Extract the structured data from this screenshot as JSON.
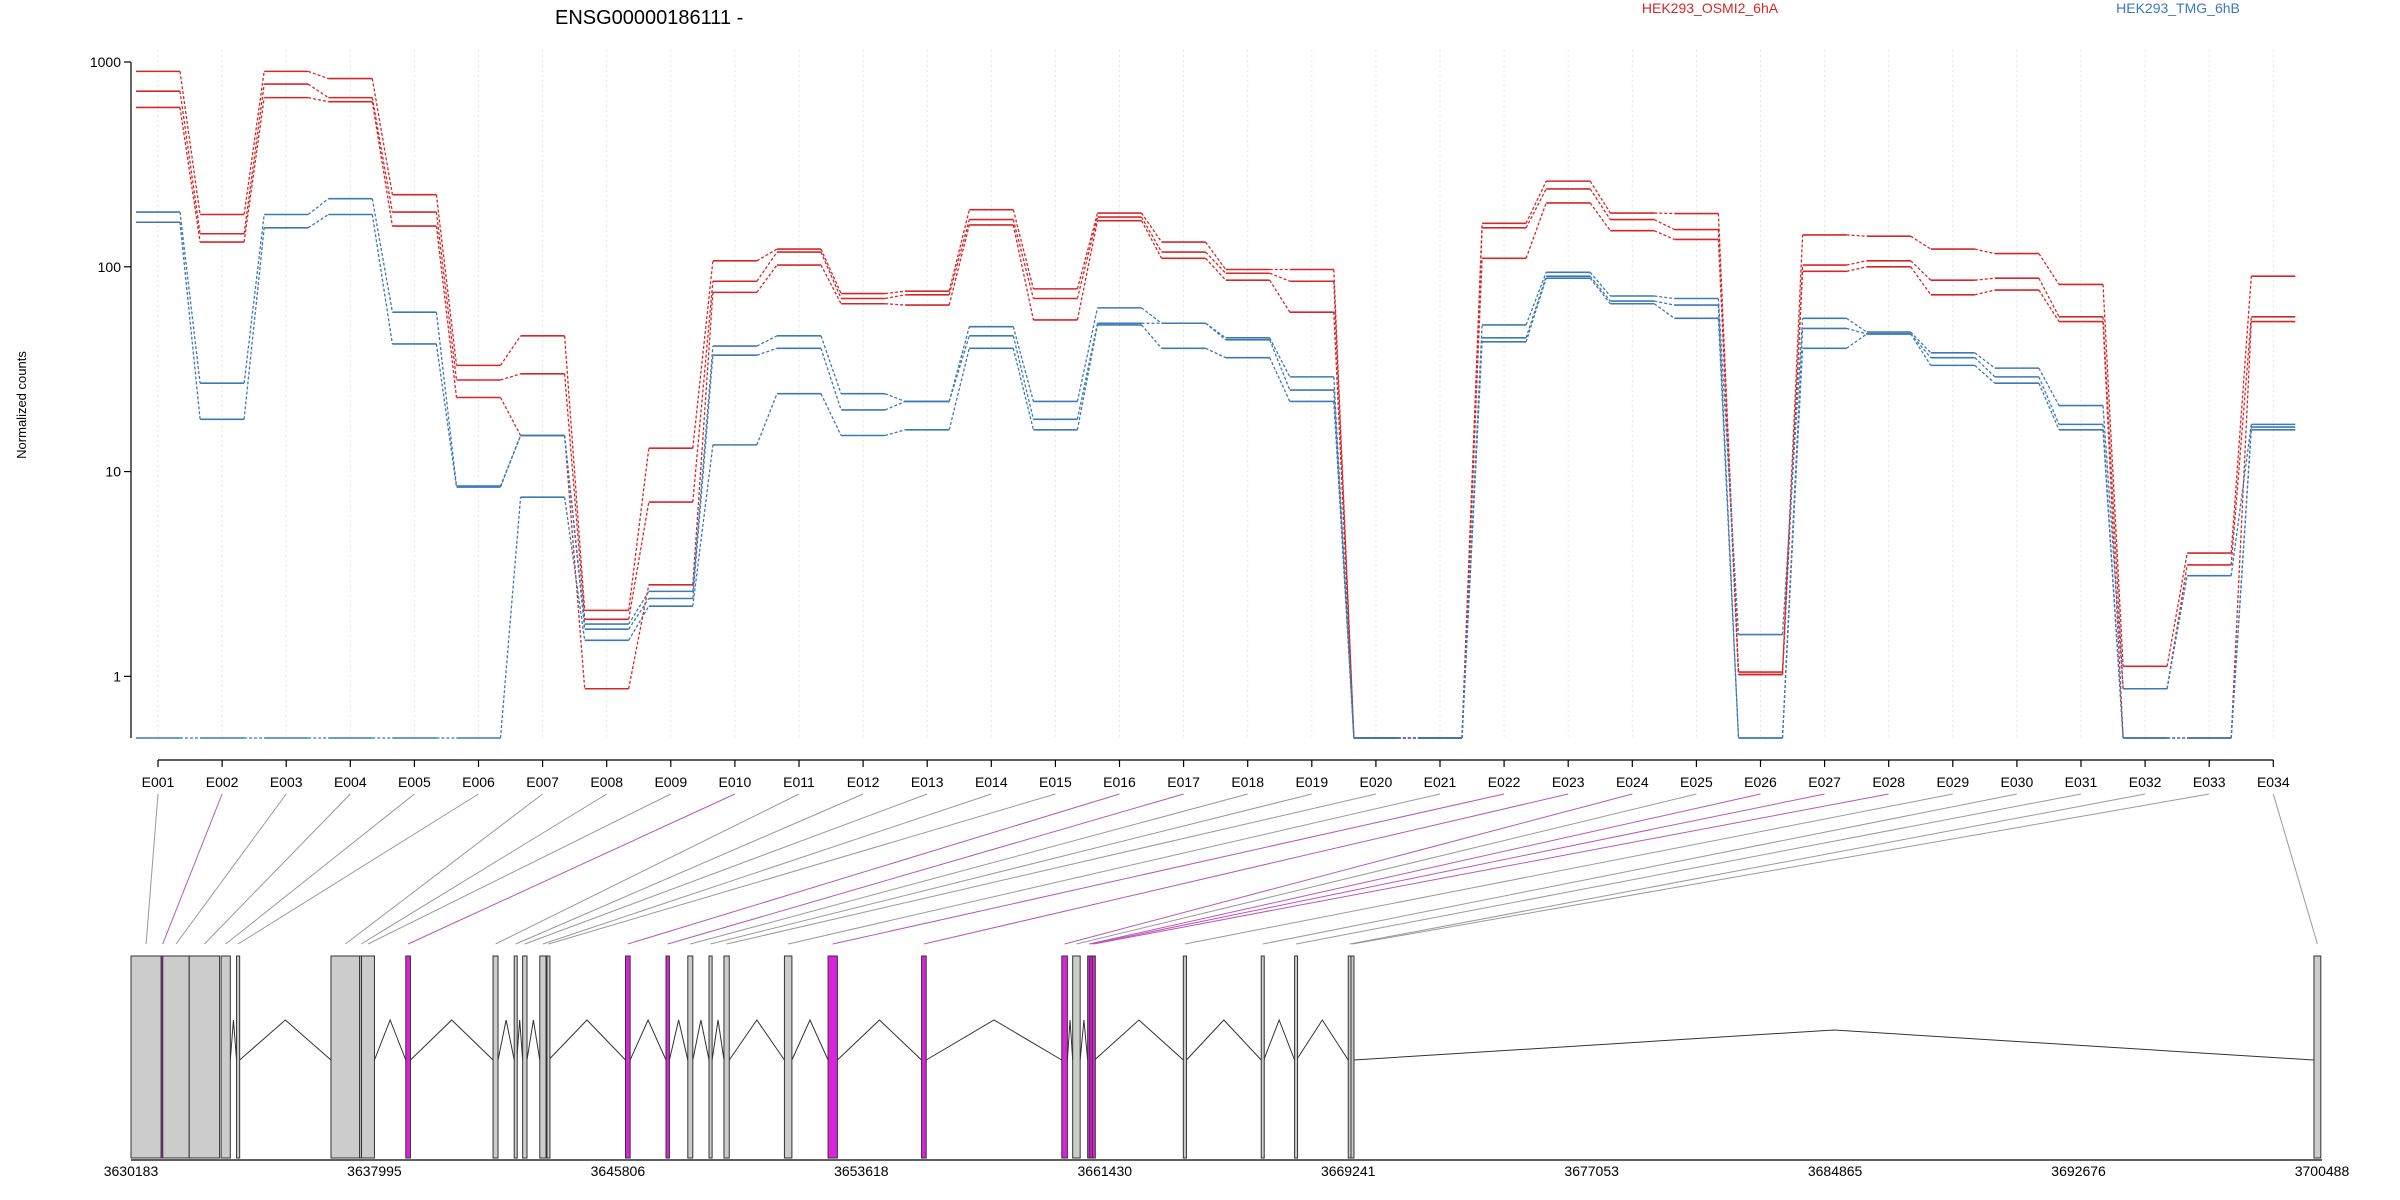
{
  "header": {
    "title": "ENSG00000186111 -"
  },
  "legend": [
    {
      "name": "HEK293_OSMI2_6hA",
      "color": "#d62728"
    },
    {
      "name": "HEK293_TMG_6hB",
      "color": "#3b7ab5"
    }
  ],
  "chart_data": {
    "type": "line",
    "title": "ENSG00000186111 -",
    "ylabel": "Normalized counts",
    "yscale": "log",
    "ylim": [
      0.5,
      1000
    ],
    "yticks": [
      1,
      10,
      100,
      1000
    ],
    "legend_position": "top",
    "categories": [
      "E001",
      "E002",
      "E003",
      "E004",
      "E005",
      "E006",
      "E007",
      "E008",
      "E009",
      "E010",
      "E011",
      "E012",
      "E013",
      "E014",
      "E015",
      "E016",
      "E017",
      "E018",
      "E019",
      "E020",
      "E021",
      "E022",
      "E023",
      "E024",
      "E025",
      "E026",
      "E027",
      "E028",
      "E029",
      "E030",
      "E031",
      "E032",
      "E033",
      "E034"
    ],
    "series": [
      {
        "name": "HEK293_OSMI2_6hA",
        "color": "#d62728",
        "values": [
          900,
          180,
          900,
          830,
          225,
          33,
          46,
          2.1,
          13,
          107,
          122,
          74,
          76,
          190,
          78,
          183,
          132,
          97,
          97,
          0.5,
          0.5,
          163,
          262,
          183,
          182,
          1.05,
          143,
          141,
          122,
          116,
          82,
          1.12,
          4,
          90
        ]
      },
      {
        "name": "HEK293_OSMI2_6hA",
        "color": "#d62728",
        "values": [
          720,
          145,
          780,
          670,
          185,
          28,
          30,
          1.9,
          7.1,
          85,
          118,
          70,
          73,
          170,
          70,
          175,
          118,
          93,
          85,
          0.5,
          0.5,
          155,
          240,
          170,
          152,
          1.02,
          102,
          107,
          86,
          88,
          57,
          0.87,
          3.5,
          57
        ]
      },
      {
        "name": "HEK293_OSMI2_6hA",
        "color": "#d62728",
        "values": [
          600,
          132,
          670,
          640,
          158,
          23,
          15,
          0.87,
          2.8,
          75,
          102,
          66,
          65,
          160,
          55,
          168,
          110,
          86,
          60,
          0.5,
          0.5,
          110,
          205,
          150,
          136,
          1.02,
          95,
          100,
          73,
          77,
          54,
          0.5,
          0.5,
          54
        ]
      },
      {
        "name": "HEK293_TMG_6hB",
        "color": "#3b7ab5",
        "values": [
          185,
          27,
          180,
          215,
          60,
          8.5,
          15,
          1.8,
          2.6,
          41,
          46,
          24,
          22,
          51,
          22,
          63,
          53,
          45,
          29,
          0.5,
          0.5,
          52,
          94,
          72,
          70,
          1.6,
          56,
          48,
          38,
          32,
          21,
          0.87,
          3.1,
          17
        ]
      },
      {
        "name": "HEK293_TMG_6hB",
        "color": "#3b7ab5",
        "values": [
          165,
          18,
          155,
          180,
          42,
          8.4,
          15,
          1.7,
          2.4,
          37,
          40,
          20,
          22,
          46,
          18,
          53,
          53,
          44,
          25,
          0.5,
          0.5,
          45,
          90,
          68,
          65,
          0.5,
          50,
          47,
          36,
          29,
          17,
          0.5,
          0.5,
          16.5
        ]
      },
      {
        "name": "HEK293_TMG_6hB",
        "color": "#3b7ab5",
        "values": [
          0.5,
          0.5,
          0.5,
          0.5,
          0.5,
          0.5,
          7.5,
          1.5,
          2.2,
          13.5,
          24,
          15,
          16,
          40,
          16,
          52,
          40,
          36,
          22,
          0.5,
          0.5,
          43,
          88,
          66,
          56,
          0.5,
          40,
          47,
          33,
          27,
          16,
          0.5,
          0.5,
          16
        ]
      }
    ]
  },
  "gene_model": {
    "axis_ticks": [
      "3630183",
      "3637995",
      "3645806",
      "3653618",
      "3661430",
      "3669241",
      "3677053",
      "3684865",
      "3692676",
      "3700488"
    ],
    "genomic_range": [
      3630183,
      3700488
    ],
    "colors": {
      "normal_exon": "#cccccc",
      "significant_exon": "#dd22dd",
      "mapping_line": "#999999",
      "significant_line": "#bb55bb"
    },
    "exons": [
      {
        "id": "E001",
        "start": 3630183,
        "end": 3631152,
        "significant": false
      },
      {
        "id": "E002",
        "start": 3631152,
        "end": 3631202,
        "significant": true
      },
      {
        "id": "E003",
        "start": 3631202,
        "end": 3632050,
        "significant": false
      },
      {
        "id": "E004",
        "start": 3632050,
        "end": 3633025,
        "significant": false
      },
      {
        "id": "E005",
        "start": 3633075,
        "end": 3633370,
        "significant": false
      },
      {
        "id": "E006",
        "start": 3633570,
        "end": 3633670,
        "significant": false
      },
      {
        "id": "E007",
        "start": 3636600,
        "end": 3637520,
        "significant": false
      },
      {
        "id": "E008",
        "start": 3637520,
        "end": 3637580,
        "significant": false
      },
      {
        "id": "E009",
        "start": 3637580,
        "end": 3637995,
        "significant": false
      },
      {
        "id": "E010",
        "start": 3639000,
        "end": 3639150,
        "significant": true
      },
      {
        "id": "E011",
        "start": 3641800,
        "end": 3641960,
        "significant": false
      },
      {
        "id": "E012",
        "start": 3642480,
        "end": 3642560,
        "significant": false
      },
      {
        "id": "E013",
        "start": 3642750,
        "end": 3642890,
        "significant": false
      },
      {
        "id": "E014",
        "start": 3643300,
        "end": 3643500,
        "significant": false
      },
      {
        "id": "E015",
        "start": 3643530,
        "end": 3643580,
        "significant": false
      },
      {
        "id": "E016",
        "start": 3646050,
        "end": 3646200,
        "significant": true
      },
      {
        "id": "E017",
        "start": 3647350,
        "end": 3647460,
        "significant": true
      },
      {
        "id": "E018",
        "start": 3648050,
        "end": 3648210,
        "significant": false
      },
      {
        "id": "E019",
        "start": 3648730,
        "end": 3648830,
        "significant": false
      },
      {
        "id": "E020",
        "start": 3649210,
        "end": 3649380,
        "significant": false
      },
      {
        "id": "E021",
        "start": 3651150,
        "end": 3651390,
        "significant": false
      },
      {
        "id": "E022",
        "start": 3652550,
        "end": 3652850,
        "significant": true
      },
      {
        "id": "E023",
        "start": 3655550,
        "end": 3655700,
        "significant": true
      },
      {
        "id": "E024",
        "start": 3660050,
        "end": 3660230,
        "significant": true
      },
      {
        "id": "E025",
        "start": 3660400,
        "end": 3660640,
        "significant": false
      },
      {
        "id": "E026",
        "start": 3660880,
        "end": 3660950,
        "significant": true
      },
      {
        "id": "E027",
        "start": 3660950,
        "end": 3661030,
        "significant": true
      },
      {
        "id": "E028",
        "start": 3661030,
        "end": 3661100,
        "significant": true
      },
      {
        "id": "E029",
        "start": 3663950,
        "end": 3664050,
        "significant": false
      },
      {
        "id": "E030",
        "start": 3666450,
        "end": 3666530,
        "significant": false
      },
      {
        "id": "E031",
        "start": 3667520,
        "end": 3667580,
        "significant": false
      },
      {
        "id": "E032",
        "start": 3669241,
        "end": 3669330,
        "significant": false
      },
      {
        "id": "E033",
        "start": 3669330,
        "end": 3669420,
        "significant": false
      },
      {
        "id": "E034",
        "start": 3700230,
        "end": 3700450,
        "significant": false
      }
    ]
  }
}
